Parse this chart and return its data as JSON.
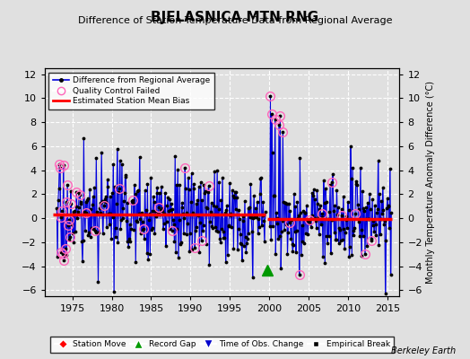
{
  "title": "BJELASNICA MTN RNG",
  "subtitle": "Difference of Station Temperature Data from Regional Average",
  "ylabel_right": "Monthly Temperature Anomaly Difference (°C)",
  "xlim": [
    1971.5,
    2016.5
  ],
  "ylim": [
    -6.5,
    12.5
  ],
  "yticks": [
    -6,
    -4,
    -2,
    0,
    2,
    4,
    6,
    8,
    10,
    12
  ],
  "xticks": [
    1975,
    1980,
    1985,
    1990,
    1995,
    2000,
    2005,
    2010,
    2015
  ],
  "bg_color": "#e0e0e0",
  "grid_color": "#ffffff",
  "bias_level_1": 0.3,
  "bias_level_2": -0.1,
  "seg1_start": 1972.5,
  "seg1_end": 1999.5,
  "seg2_start": 1999.7,
  "seg2_end": 2015.5,
  "record_gap_x": 1999.75,
  "record_gap_y": -4.3,
  "line_color": "#0000dd",
  "stem_color": "#8888ee",
  "berkeley_earth_label": "Berkeley Earth"
}
